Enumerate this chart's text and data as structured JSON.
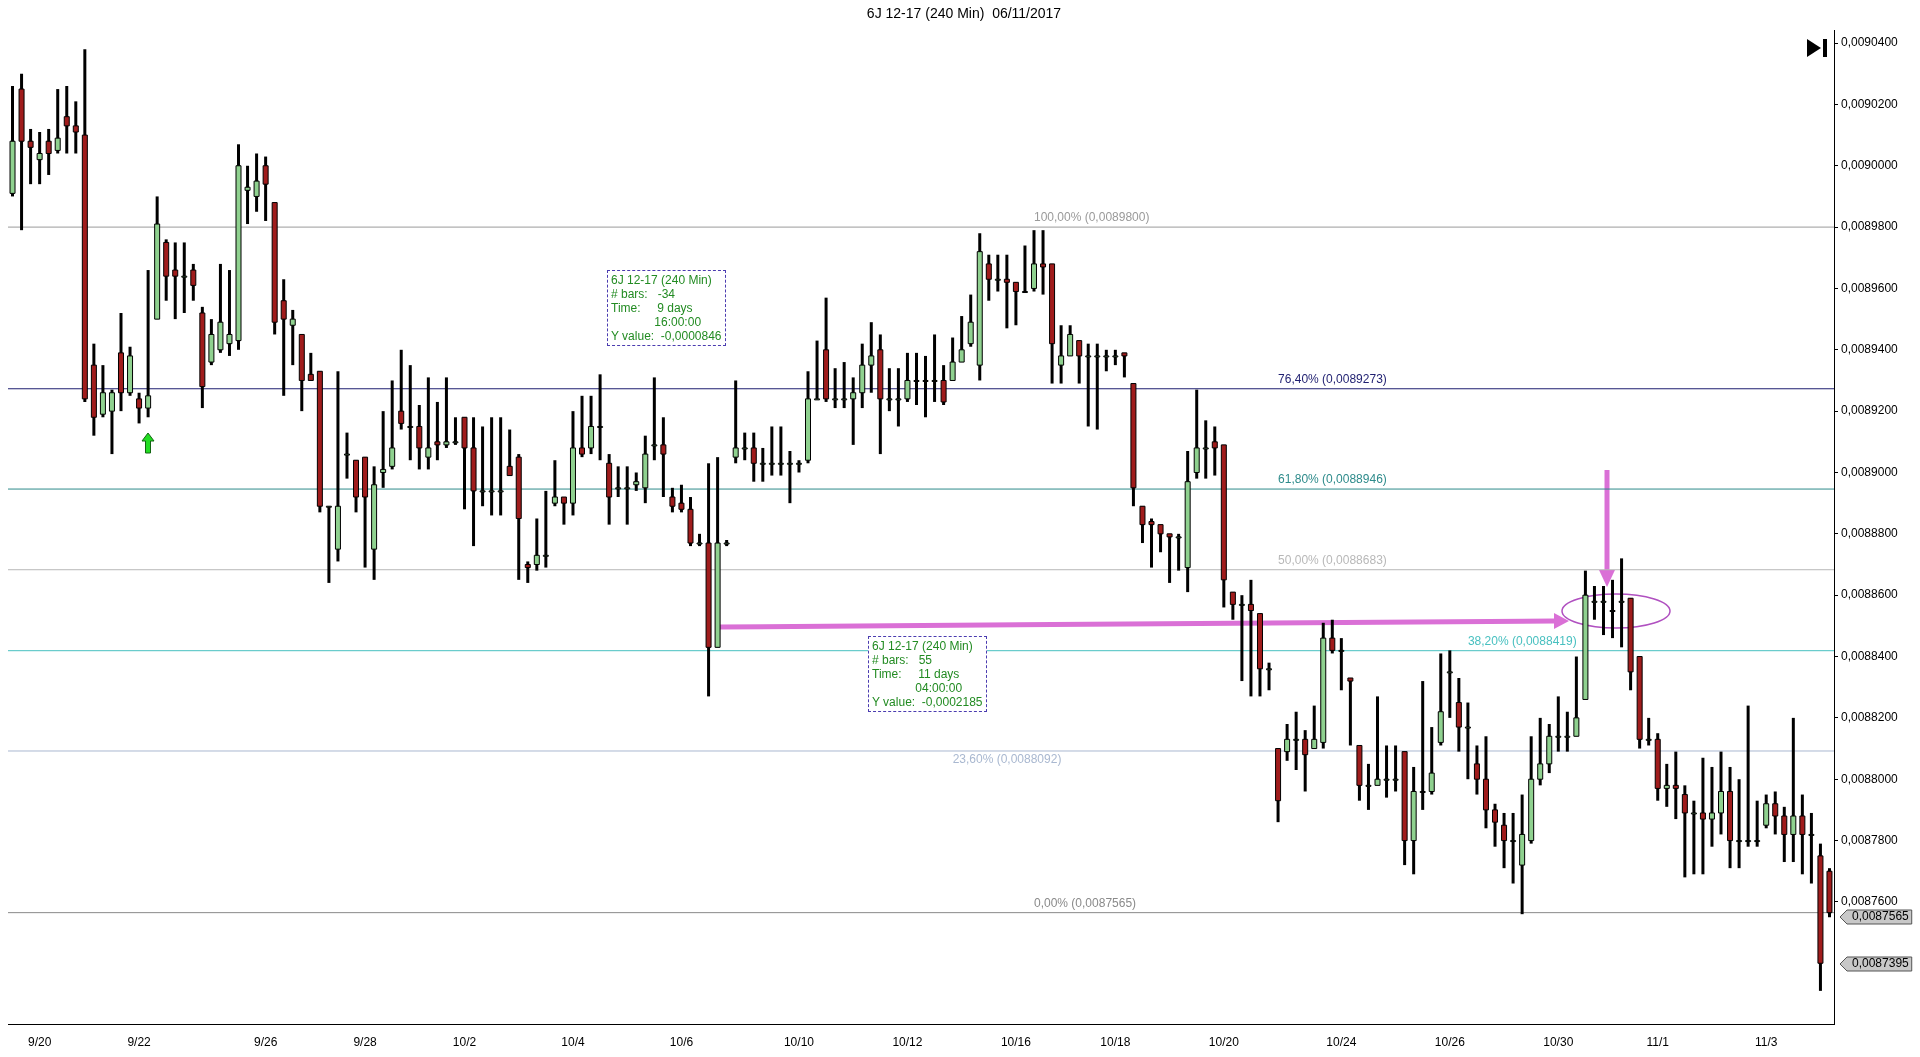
{
  "chart_data": {
    "type": "candlestick",
    "title": "6J 12-17 (240 Min)  06/11/2017",
    "categories": [
      null,
      null,
      null,
      "9/20",
      null,
      null,
      null,
      null,
      null,
      null,
      null,
      null,
      null,
      null,
      "9/22",
      null,
      null,
      null,
      null,
      null,
      null,
      null,
      null,
      null,
      null,
      null,
      null,
      null,
      "9/26",
      null,
      null,
      null,
      null,
      null,
      null,
      null,
      null,
      null,
      null,
      "9/28",
      null,
      null,
      null,
      null,
      null,
      null,
      null,
      null,
      null,
      null,
      "10/2",
      null,
      null,
      null,
      null,
      null,
      null,
      null,
      null,
      null,
      null,
      null,
      "10/4",
      null,
      null,
      null,
      null,
      null,
      null,
      null,
      null,
      null,
      null,
      null,
      "10/6",
      null,
      null,
      null,
      null,
      null,
      null,
      null,
      null,
      null,
      null,
      null,
      null,
      "10/10",
      null,
      null,
      null,
      null,
      null,
      null,
      null,
      null,
      null,
      null,
      null,
      "10/12",
      null,
      null,
      null,
      null,
      null,
      null,
      null,
      null,
      null,
      null,
      null,
      "10/16",
      null,
      null,
      null,
      null,
      null,
      null,
      null,
      null,
      null,
      null,
      "10/18",
      null,
      null,
      null,
      null,
      null,
      null,
      null,
      null,
      null,
      null,
      null,
      "10/20",
      null,
      null,
      null,
      null,
      null,
      null,
      null,
      null,
      null,
      null,
      null,
      null,
      "10/24",
      null,
      null,
      null,
      null,
      null,
      null,
      null,
      null,
      null,
      null,
      null,
      "10/26",
      null,
      null,
      null,
      null,
      null,
      null,
      null,
      null,
      null,
      null,
      null,
      "10/30",
      null,
      null,
      null,
      null,
      null,
      null,
      null,
      null,
      null,
      null,
      "11/1",
      null,
      null,
      null,
      null,
      null,
      null,
      null,
      null,
      null,
      null,
      null,
      "11/3",
      null,
      null,
      null,
      null,
      null,
      null,
      null
    ],
    "ohlc": [
      [
        0.008991,
        0.009026,
        0.00899,
        0.009008
      ],
      [
        0.009025,
        0.00903,
        0.008979,
        0.009008
      ],
      [
        0.009008,
        0.009012,
        0.008994,
        0.009006
      ],
      [
        0.009002,
        0.009011,
        0.008994,
        0.009004
      ],
      [
        0.009008,
        0.009012,
        0.008997,
        0.009004
      ],
      [
        0.009005,
        0.009025,
        0.009004,
        0.009009
      ],
      [
        0.009016,
        0.009026,
        0.009004,
        0.009013
      ],
      [
        0.009013,
        0.009021,
        0.009004,
        0.009011
      ],
      [
        0.00901,
        0.009038,
        0.008923,
        0.008924
      ],
      [
        0.008935,
        0.008942,
        0.008912,
        0.008918
      ],
      [
        0.008919,
        0.008935,
        0.008918,
        0.008926
      ],
      [
        0.00892,
        0.008927,
        0.008906,
        0.008926
      ],
      [
        0.008939,
        0.008952,
        0.00892,
        0.008926
      ],
      [
        0.008926,
        0.008941,
        0.008925,
        0.008938
      ],
      [
        0.008924,
        0.008926,
        0.008916,
        0.008921
      ],
      [
        0.008921,
        0.008966,
        0.008918,
        0.008925
      ],
      [
        0.00895,
        0.00899,
        0.00895,
        0.008981
      ],
      [
        0.008975,
        0.008976,
        0.008956,
        0.008964
      ],
      [
        0.008966,
        0.008975,
        0.00895,
        0.008964
      ],
      [
        0.008964,
        0.008975,
        0.008952,
        0.008964
      ],
      [
        0.008966,
        0.008968,
        0.008956,
        0.008961
      ],
      [
        0.008952,
        0.008954,
        0.008921,
        0.008928
      ],
      [
        0.008936,
        0.00895,
        0.008935,
        0.008945
      ],
      [
        0.00894,
        0.008968,
        0.008939,
        0.008949
      ],
      [
        0.008942,
        0.008966,
        0.008938,
        0.008945
      ],
      [
        0.008943,
        0.009007,
        0.00894,
        0.009
      ],
      [
        0.008992,
        0.009,
        0.008981,
        0.008993
      ],
      [
        0.00899,
        0.009004,
        0.008985,
        0.008995
      ],
      [
        0.009,
        0.009003,
        0.008982,
        0.008994
      ],
      [
        0.008988,
        0.008988,
        0.008945,
        0.008949
      ],
      [
        0.008956,
        0.008963,
        0.008925,
        0.00895
      ],
      [
        0.008948,
        0.008953,
        0.008935,
        0.00895
      ],
      [
        0.008945,
        0.008945,
        0.00892,
        0.00893
      ],
      [
        0.008932,
        0.008939,
        0.00893,
        0.00893
      ],
      [
        0.008933,
        0.008933,
        0.008887,
        0.008889
      ],
      [
        0.008889,
        0.008889,
        0.008864,
        0.008889
      ],
      [
        0.008875,
        0.008933,
        0.008871,
        0.008889
      ],
      [
        0.008906,
        0.008913,
        0.008898,
        0.008906
      ],
      [
        0.008904,
        0.008904,
        0.008887,
        0.008892
      ],
      [
        0.008905,
        0.008905,
        0.008869,
        0.008892
      ],
      [
        0.008875,
        0.008902,
        0.008865,
        0.008896
      ],
      [
        0.0089,
        0.00892,
        0.008895,
        0.008901
      ],
      [
        0.008902,
        0.00893,
        0.008901,
        0.008908
      ],
      [
        0.00892,
        0.00894,
        0.008914,
        0.008916
      ],
      [
        0.008915,
        0.008935,
        0.008904,
        0.008915
      ],
      [
        0.008915,
        0.008922,
        0.008901,
        0.008908
      ],
      [
        0.008905,
        0.008931,
        0.008901,
        0.008908
      ],
      [
        0.00891,
        0.008923,
        0.008904,
        0.008909
      ],
      [
        0.008909,
        0.008931,
        0.008908,
        0.00891
      ],
      [
        0.00891,
        0.008918,
        0.008909,
        0.00891
      ],
      [
        0.008918,
        0.008918,
        0.008888,
        0.008908
      ],
      [
        0.008908,
        0.008918,
        0.008876,
        0.008894
      ],
      [
        0.008894,
        0.008915,
        0.008889,
        0.008894
      ],
      [
        0.008894,
        0.008918,
        0.008886,
        0.008894
      ],
      [
        0.008894,
        0.008918,
        0.008886,
        0.008894
      ],
      [
        0.008902,
        0.008914,
        0.008899,
        0.008899
      ],
      [
        0.008905,
        0.008906,
        0.008865,
        0.008885
      ],
      [
        0.00887,
        0.008871,
        0.008864,
        0.008869
      ],
      [
        0.00887,
        0.008885,
        0.008868,
        0.008873
      ],
      [
        0.008873,
        0.008894,
        0.008869,
        0.008873
      ],
      [
        0.00889,
        0.008904,
        0.008889,
        0.008892
      ],
      [
        0.008892,
        0.008892,
        0.008883,
        0.00889
      ],
      [
        0.00889,
        0.00892,
        0.008886,
        0.008908
      ],
      [
        0.008908,
        0.008925,
        0.008905,
        0.008906
      ],
      [
        0.008908,
        0.008925,
        0.008906,
        0.008915
      ],
      [
        0.008915,
        0.008932,
        0.008904,
        0.008915
      ],
      [
        0.008903,
        0.008906,
        0.008883,
        0.008892
      ],
      [
        0.008895,
        0.008902,
        0.008892,
        0.008895
      ],
      [
        0.008895,
        0.008902,
        0.008883,
        0.008895
      ],
      [
        0.008896,
        0.0089,
        0.008894,
        0.008897
      ],
      [
        0.008895,
        0.008912,
        0.00889,
        0.008906
      ],
      [
        0.008909,
        0.008931,
        0.008904,
        0.008909
      ],
      [
        0.008909,
        0.008918,
        0.008892,
        0.008906
      ],
      [
        0.008892,
        0.008895,
        0.008887,
        0.008889
      ],
      [
        0.00889,
        0.008896,
        0.008887,
        0.008888
      ],
      [
        0.008888,
        0.008892,
        0.008876,
        0.008877
      ],
      [
        0.008877,
        0.00888,
        0.008876,
        0.008877
      ],
      [
        0.008877,
        0.008903,
        0.008827,
        0.008843
      ],
      [
        0.008843,
        0.008905,
        0.008843,
        0.008877
      ],
      [
        0.008877,
        0.008878,
        0.008876,
        0.008877
      ],
      [
        0.008905,
        0.00893,
        0.008903,
        0.008908
      ],
      [
        0.008908,
        0.008913,
        0.008904,
        0.008908
      ],
      [
        0.008908,
        0.008913,
        0.008897,
        0.008903
      ],
      [
        0.008903,
        0.008908,
        0.008897,
        0.008903
      ],
      [
        0.008903,
        0.008915,
        0.008899,
        0.008903
      ],
      [
        0.008903,
        0.008915,
        0.008899,
        0.008903
      ],
      [
        0.008903,
        0.008907,
        0.00889,
        0.008903
      ],
      [
        0.008903,
        0.008904,
        0.0089,
        0.008903
      ],
      [
        0.008904,
        0.008933,
        0.008903,
        0.008924
      ],
      [
        0.008924,
        0.008943,
        0.008924,
        0.008924
      ],
      [
        0.00894,
        0.008957,
        0.008923,
        0.008924
      ],
      [
        0.008924,
        0.008934,
        0.008921,
        0.008924
      ],
      [
        0.008924,
        0.008936,
        0.008921,
        0.008924
      ],
      [
        0.008924,
        0.008931,
        0.008909,
        0.008926
      ],
      [
        0.008926,
        0.008942,
        0.008921,
        0.008935
      ],
      [
        0.008935,
        0.008949,
        0.008926,
        0.008938
      ],
      [
        0.00894,
        0.008945,
        0.008906,
        0.008924
      ],
      [
        0.008924,
        0.008934,
        0.00892,
        0.008924
      ],
      [
        0.008924,
        0.008934,
        0.008915,
        0.008924
      ],
      [
        0.008924,
        0.008939,
        0.008923,
        0.00893
      ],
      [
        0.00893,
        0.008939,
        0.008922,
        0.00893
      ],
      [
        0.00893,
        0.008938,
        0.008918,
        0.00893
      ],
      [
        0.00893,
        0.008945,
        0.008923,
        0.00893
      ],
      [
        0.00893,
        0.008935,
        0.008922,
        0.008923
      ],
      [
        0.00893,
        0.008944,
        0.00893,
        0.008936
      ],
      [
        0.008936,
        0.008951,
        0.008936,
        0.00894
      ],
      [
        0.008942,
        0.008958,
        0.008941,
        0.008949
      ],
      [
        0.008935,
        0.008978,
        0.00893,
        0.008972
      ],
      [
        0.008968,
        0.008971,
        0.008956,
        0.008963
      ],
      [
        0.008963,
        0.008971,
        0.008959,
        0.008963
      ],
      [
        0.008963,
        0.008971,
        0.008947,
        0.008962
      ],
      [
        0.008962,
        0.008962,
        0.008948,
        0.008959
      ],
      [
        0.008959,
        0.008974,
        0.008959,
        0.008959
      ],
      [
        0.00896,
        0.008979,
        0.008959,
        0.008968
      ],
      [
        0.008968,
        0.008979,
        0.008958,
        0.008967
      ],
      [
        0.008968,
        0.008968,
        0.008929,
        0.008942
      ],
      [
        0.008935,
        0.008948,
        0.008929,
        0.008938
      ],
      [
        0.008938,
        0.008948,
        0.008938,
        0.008945
      ],
      [
        0.008943,
        0.008943,
        0.008929,
        0.008938
      ],
      [
        0.008938,
        0.008942,
        0.008915,
        0.008938
      ],
      [
        0.008938,
        0.008942,
        0.008914,
        0.008938
      ],
      [
        0.008938,
        0.00894,
        0.008933,
        0.008938
      ],
      [
        0.008938,
        0.00894,
        0.008935,
        0.008938
      ],
      [
        0.008939,
        0.008939,
        0.008931,
        0.008938
      ],
      [
        0.008929,
        0.008929,
        0.008889,
        0.008895
      ],
      [
        0.008889,
        0.008889,
        0.008877,
        0.008883
      ],
      [
        0.008884,
        0.008885,
        0.008869,
        0.008883
      ],
      [
        0.008883,
        0.008883,
        0.008874,
        0.00888
      ],
      [
        0.00888,
        0.00888,
        0.008864,
        0.008879
      ],
      [
        0.008879,
        0.00888,
        0.008868,
        0.008879
      ],
      [
        0.008869,
        0.008907,
        0.008861,
        0.008897
      ],
      [
        0.0089,
        0.008927,
        0.008898,
        0.008908
      ],
      [
        0.008908,
        0.008917,
        0.008898,
        0.008908
      ],
      [
        0.00891,
        0.008915,
        0.008899,
        0.008908
      ],
      [
        0.008909,
        0.008909,
        0.008856,
        0.008865
      ],
      [
        0.008861,
        0.008861,
        0.008852,
        0.008857
      ],
      [
        0.008857,
        0.00886,
        0.008832,
        0.008857
      ],
      [
        0.008857,
        0.008865,
        0.008827,
        0.008855
      ],
      [
        0.008854,
        0.008854,
        0.008827,
        0.008836
      ],
      [
        0.008836,
        0.008838,
        0.008829,
        0.008836
      ],
      [
        0.00881,
        0.00881,
        0.008786,
        0.008793
      ],
      [
        0.008809,
        0.008818,
        0.008806,
        0.008813
      ],
      [
        0.008813,
        0.008822,
        0.008803,
        0.008813
      ],
      [
        0.008813,
        0.008816,
        0.008796,
        0.008808
      ],
      [
        0.00881,
        0.008824,
        0.00881,
        0.008813
      ],
      [
        0.008812,
        0.008851,
        0.00881,
        0.008846
      ],
      [
        0.008846,
        0.008852,
        0.008841,
        0.008842
      ],
      [
        0.008842,
        0.008846,
        0.008829,
        0.008842
      ],
      [
        0.008833,
        0.008833,
        0.008811,
        0.008832
      ],
      [
        0.008811,
        0.008811,
        0.008793,
        0.008798
      ],
      [
        0.008798,
        0.008805,
        0.00879,
        0.008798
      ],
      [
        0.008798,
        0.008827,
        0.008798,
        0.0088
      ],
      [
        0.0088,
        0.008811,
        0.008794,
        0.0088
      ],
      [
        0.0088,
        0.008811,
        0.008796,
        0.0088
      ],
      [
        0.008809,
        0.008809,
        0.008772,
        0.00878
      ],
      [
        0.00878,
        0.008804,
        0.008769,
        0.008796
      ],
      [
        0.008796,
        0.008832,
        0.00879,
        0.008796
      ],
      [
        0.008796,
        0.008817,
        0.008795,
        0.008802
      ],
      [
        0.008812,
        0.008841,
        0.008811,
        0.008822
      ],
      [
        0.008835,
        0.008842,
        0.00882,
        0.008835
      ],
      [
        0.008825,
        0.008833,
        0.008809,
        0.008817
      ],
      [
        0.008817,
        0.008825,
        0.0088,
        0.008817
      ],
      [
        0.008805,
        0.008811,
        0.008795,
        0.0088
      ],
      [
        0.0088,
        0.008814,
        0.008784,
        0.00879
      ],
      [
        0.00879,
        0.008792,
        0.008778,
        0.008786
      ],
      [
        0.008785,
        0.008789,
        0.008771,
        0.00878
      ],
      [
        0.00878,
        0.008789,
        0.008766,
        0.00878
      ],
      [
        0.008772,
        0.008795,
        0.008756,
        0.008782
      ],
      [
        0.00878,
        0.008814,
        0.008779,
        0.0088
      ],
      [
        0.0088,
        0.00882,
        0.008798,
        0.008805
      ],
      [
        0.008805,
        0.008818,
        0.008802,
        0.008814
      ],
      [
        0.008814,
        0.008827,
        0.008809,
        0.008814
      ],
      [
        0.008814,
        0.008822,
        0.008809,
        0.008814
      ],
      [
        0.008814,
        0.00884,
        0.008814,
        0.00882
      ],
      [
        0.008826,
        0.008868,
        0.008826,
        0.00886
      ],
      [
        0.008858,
        0.008863,
        0.008852,
        0.008858
      ],
      [
        0.008858,
        0.008863,
        0.008847,
        0.008858
      ],
      [
        0.008855,
        0.008865,
        0.008846,
        0.008855
      ],
      [
        0.008858,
        0.008872,
        0.008843,
        0.008858
      ],
      [
        0.008859,
        0.008859,
        0.008829,
        0.008835
      ],
      [
        0.00884,
        0.00884,
        0.00881,
        0.008813
      ],
      [
        0.008813,
        0.00882,
        0.008811,
        0.008813
      ],
      [
        0.008813,
        0.008815,
        0.008793,
        0.008797
      ],
      [
        0.008797,
        0.008805,
        0.008791,
        0.008798
      ],
      [
        0.008798,
        0.008809,
        0.008787,
        0.008797
      ],
      [
        0.008795,
        0.008798,
        0.008768,
        0.008789
      ],
      [
        0.008789,
        0.008793,
        0.008769,
        0.008789
      ],
      [
        0.008789,
        0.008807,
        0.008769,
        0.008787
      ],
      [
        0.008787,
        0.008804,
        0.008778,
        0.008789
      ],
      [
        0.008789,
        0.008809,
        0.008782,
        0.008796
      ],
      [
        0.008796,
        0.008804,
        0.008771,
        0.00878
      ],
      [
        0.00878,
        0.0088,
        0.008771,
        0.00878
      ],
      [
        0.00878,
        0.008824,
        0.008778,
        0.00878
      ],
      [
        0.00878,
        0.008793,
        0.008778,
        0.00878
      ],
      [
        0.008785,
        0.008795,
        0.008784,
        0.008792
      ],
      [
        0.008792,
        0.008796,
        0.008782,
        0.008788
      ],
      [
        0.008788,
        0.008791,
        0.008773,
        0.008782
      ],
      [
        0.008782,
        0.00882,
        0.008773,
        0.008788
      ],
      [
        0.008788,
        0.008795,
        0.008769,
        0.008782
      ],
      [
        0.008782,
        0.008789,
        0.008766,
        0.008782
      ],
      [
        0.008775,
        0.008779,
        0.008731,
        0.00874
      ],
      [
        0.00877,
        0.008771,
        0.008755,
        0.0087565
      ]
    ],
    "ylim": [
      0.00872,
      0.009044
    ],
    "yticks": [
      {
        "value": 0.00876,
        "label": "0,0087600"
      },
      {
        "value": 0.00878,
        "label": "0,0087800"
      },
      {
        "value": 0.0088,
        "label": "0,0088000"
      },
      {
        "value": 0.00882,
        "label": "0,0088200"
      },
      {
        "value": 0.00884,
        "label": "0,0088400"
      },
      {
        "value": 0.00886,
        "label": "0,0088600"
      },
      {
        "value": 0.00888,
        "label": "0,0088800"
      },
      {
        "value": 0.0089,
        "label": "0,0089000"
      },
      {
        "value": 0.00892,
        "label": "0,0089200"
      },
      {
        "value": 0.00894,
        "label": "0,0089400"
      },
      {
        "value": 0.00896,
        "label": "0,0089600"
      },
      {
        "value": 0.00898,
        "label": "0,0089800"
      },
      {
        "value": 0.009,
        "label": "0,0090000"
      },
      {
        "value": 0.00902,
        "label": "0,0090200"
      },
      {
        "value": 0.00904,
        "label": "0,0090400"
      }
    ],
    "ref_lines": [
      {
        "axis": "y",
        "value": 0.00898,
        "label": "100,00% (0,0089800)",
        "color": "#9a9a9a"
      },
      {
        "axis": "y",
        "value": 0.0089273,
        "label": "76,40% (0,0089273)",
        "color": "#1f1f70"
      },
      {
        "axis": "y",
        "value": 0.0088946,
        "label": "61,80% (0,0088946)",
        "color": "#2e8b8b"
      },
      {
        "axis": "y",
        "value": 0.0088683,
        "label": "50,00% (0,0088683)",
        "color": "#b8b8b8"
      },
      {
        "axis": "y",
        "value": 0.0088419,
        "label": "38,20% (0,0088419)",
        "color": "#48c0c0"
      },
      {
        "axis": "y",
        "value": 0.0088092,
        "label": "23,60% (0,0088092)",
        "color": "#a9b8d0"
      },
      {
        "axis": "y",
        "value": 0.0087565,
        "label": "0,00% (0,0087565)",
        "color": "#8a8a8a"
      }
    ],
    "annotations": [
      "6J 12-17 (240 Min)\n# bars:   -34\nTime:     9 days\n             16:00:00\nY value:  -0,0000846",
      "6J 12-17 (240 Min)\n# bars:   55\nTime:     11 days\n             04:00:00\nY value:  -0,0002185",
      "0,0087565",
      "0,0087395"
    ],
    "legend": false
  }
}
